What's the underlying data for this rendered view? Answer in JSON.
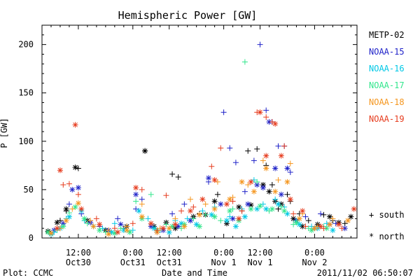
{
  "chart_data": {
    "type": "scatter",
    "title": "Hemispheric Power [GW]",
    "ylabel": "P [GW]",
    "xlabel": "Date and Time",
    "ylim": [
      0,
      220
    ],
    "yticks": [
      0,
      50,
      100,
      150,
      200
    ],
    "xlim_hours": [
      0,
      104
    ],
    "xticks": [
      {
        "h": 12,
        "time": "12:00",
        "date": "Oct30"
      },
      {
        "h": 30,
        "time": "0:00",
        "date": "Oct31"
      },
      {
        "h": 42,
        "time": "12:00",
        "date": "Oct31"
      },
      {
        "h": 60,
        "time": "0:00",
        "date": "Nov 1"
      },
      {
        "h": 72,
        "time": "12:00",
        "date": "Nov 1"
      },
      {
        "h": 90,
        "time": "0:00",
        "date": "Nov 2"
      }
    ],
    "legend": {
      "placement": "right",
      "series_entries": [
        "METP-02",
        "NOAA-15",
        "NOAA-16",
        "NOAA-17",
        "NOAA-18",
        "NOAA-19"
      ],
      "marker_entries": [
        {
          "symbol": "+",
          "label": "south"
        },
        {
          "symbol": "*",
          "label": "north"
        }
      ]
    },
    "series": [
      {
        "name": "METP-02",
        "color": "#000000",
        "south": [
          [
            6,
            18
          ],
          [
            8,
            28
          ],
          [
            12,
            72
          ],
          [
            27,
            10
          ],
          [
            34,
            90
          ],
          [
            43,
            66
          ],
          [
            45,
            63
          ],
          [
            52,
            25
          ],
          [
            58,
            45
          ],
          [
            66,
            28
          ],
          [
            68,
            90
          ],
          [
            71,
            92
          ],
          [
            74,
            75
          ],
          [
            76,
            55
          ],
          [
            78,
            30
          ],
          [
            81,
            45
          ],
          [
            82,
            38
          ],
          [
            85,
            25
          ],
          [
            88,
            18
          ],
          [
            93,
            24
          ],
          [
            96,
            18
          ],
          [
            100,
            15
          ]
        ],
        "north": [
          [
            2,
            7
          ],
          [
            5,
            16
          ],
          [
            8,
            30
          ],
          [
            11,
            73
          ],
          [
            15,
            18
          ],
          [
            21,
            8
          ],
          [
            28,
            12
          ],
          [
            34,
            90
          ],
          [
            37,
            12
          ],
          [
            41,
            16
          ],
          [
            44,
            10
          ],
          [
            50,
            22
          ],
          [
            54,
            24
          ],
          [
            57,
            38
          ],
          [
            61,
            15
          ],
          [
            65,
            32
          ],
          [
            69,
            34
          ],
          [
            73,
            55
          ],
          [
            75,
            48
          ],
          [
            77,
            38
          ],
          [
            79,
            35
          ],
          [
            83,
            20
          ],
          [
            86,
            12
          ],
          [
            91,
            14
          ],
          [
            95,
            22
          ],
          [
            98,
            16
          ],
          [
            102,
            22
          ]
        ]
      },
      {
        "name": "NOAA-15",
        "color": "#1f22c8",
        "south": [
          [
            3,
            5
          ],
          [
            9,
            35
          ],
          [
            13,
            25
          ],
          [
            19,
            12
          ],
          [
            25,
            20
          ],
          [
            31,
            30
          ],
          [
            33,
            40
          ],
          [
            38,
            6
          ],
          [
            43,
            25
          ],
          [
            47,
            35
          ],
          [
            55,
            58
          ],
          [
            60,
            130
          ],
          [
            62,
            93
          ],
          [
            64,
            78
          ],
          [
            67,
            48
          ],
          [
            70,
            80
          ],
          [
            72,
            200
          ],
          [
            74,
            132
          ],
          [
            76,
            120
          ],
          [
            78,
            95
          ],
          [
            80,
            95
          ],
          [
            82,
            68
          ],
          [
            87,
            22
          ],
          [
            92,
            25
          ],
          [
            97,
            15
          ]
        ],
        "north": [
          [
            4,
            8
          ],
          [
            7,
            15
          ],
          [
            10,
            50
          ],
          [
            12,
            52
          ],
          [
            16,
            16
          ],
          [
            22,
            8
          ],
          [
            26,
            14
          ],
          [
            31,
            45
          ],
          [
            36,
            12
          ],
          [
            40,
            8
          ],
          [
            45,
            12
          ],
          [
            49,
            18
          ],
          [
            55,
            62
          ],
          [
            59,
            35
          ],
          [
            63,
            20
          ],
          [
            68,
            35
          ],
          [
            71,
            55
          ],
          [
            73,
            52
          ],
          [
            75,
            120
          ],
          [
            77,
            72
          ],
          [
            79,
            45
          ],
          [
            81,
            72
          ],
          [
            84,
            18
          ],
          [
            90,
            10
          ],
          [
            95,
            14
          ],
          [
            100,
            10
          ]
        ]
      },
      {
        "name": "NOAA-16",
        "color": "#00c8e6",
        "south": [
          [
            4,
            6
          ],
          [
            8,
            20
          ],
          [
            14,
            18
          ],
          [
            20,
            10
          ],
          [
            24,
            15
          ],
          [
            30,
            8
          ],
          [
            35,
            20
          ],
          [
            39,
            8
          ],
          [
            44,
            18
          ],
          [
            48,
            20
          ],
          [
            53,
            28
          ],
          [
            57,
            32
          ],
          [
            62,
            22
          ],
          [
            66,
            30
          ],
          [
            70,
            60
          ],
          [
            73,
            35
          ],
          [
            77,
            40
          ],
          [
            80,
            32
          ],
          [
            84,
            18
          ],
          [
            89,
            12
          ],
          [
            94,
            15
          ]
        ],
        "north": [
          [
            3,
            4
          ],
          [
            6,
            10
          ],
          [
            9,
            22
          ],
          [
            13,
            28
          ],
          [
            17,
            12
          ],
          [
            23,
            6
          ],
          [
            27,
            8
          ],
          [
            32,
            28
          ],
          [
            37,
            10
          ],
          [
            42,
            6
          ],
          [
            46,
            15
          ],
          [
            51,
            14
          ],
          [
            56,
            24
          ],
          [
            61,
            18
          ],
          [
            64,
            12
          ],
          [
            67,
            22
          ],
          [
            71,
            30
          ],
          [
            74,
            30
          ],
          [
            78,
            35
          ],
          [
            81,
            25
          ],
          [
            85,
            14
          ],
          [
            91,
            10
          ],
          [
            96,
            8
          ]
        ]
      },
      {
        "name": "NOAA-17",
        "color": "#32e68c",
        "south": [
          [
            5,
            8
          ],
          [
            9,
            26
          ],
          [
            15,
            15
          ],
          [
            21,
            6
          ],
          [
            26,
            10
          ],
          [
            31,
            38
          ],
          [
            36,
            45
          ],
          [
            41,
            14
          ],
          [
            46,
            10
          ],
          [
            50,
            20
          ],
          [
            54,
            24
          ],
          [
            59,
            18
          ],
          [
            63,
            30
          ],
          [
            67,
            182
          ],
          [
            71,
            58
          ],
          [
            75,
            28
          ],
          [
            79,
            32
          ],
          [
            83,
            14
          ],
          [
            88,
            10
          ],
          [
            93,
            12
          ]
        ],
        "north": [
          [
            2,
            6
          ],
          [
            7,
            12
          ],
          [
            11,
            32
          ],
          [
            14,
            20
          ],
          [
            19,
            8
          ],
          [
            24,
            5
          ],
          [
            29,
            6
          ],
          [
            33,
            20
          ],
          [
            38,
            8
          ],
          [
            43,
            12
          ],
          [
            47,
            14
          ],
          [
            52,
            12
          ],
          [
            57,
            22
          ],
          [
            62,
            28
          ],
          [
            65,
            18
          ],
          [
            69,
            30
          ],
          [
            72,
            33
          ],
          [
            76,
            30
          ],
          [
            80,
            28
          ],
          [
            84,
            16
          ],
          [
            89,
            8
          ],
          [
            94,
            10
          ]
        ]
      },
      {
        "name": "NOAA-18",
        "color": "#f5961e",
        "south": [
          [
            6,
            10
          ],
          [
            10,
            30
          ],
          [
            16,
            18
          ],
          [
            22,
            8
          ],
          [
            28,
            12
          ],
          [
            33,
            35
          ],
          [
            39,
            10
          ],
          [
            44,
            20
          ],
          [
            49,
            40
          ],
          [
            54,
            35
          ],
          [
            58,
            58
          ],
          [
            63,
            42
          ],
          [
            68,
            55
          ],
          [
            73,
            80
          ],
          [
            78,
            60
          ],
          [
            82,
            77
          ],
          [
            86,
            25
          ],
          [
            91,
            12
          ],
          [
            96,
            20
          ]
        ],
        "north": [
          [
            3,
            5
          ],
          [
            8,
            18
          ],
          [
            12,
            36
          ],
          [
            17,
            12
          ],
          [
            22,
            4
          ],
          [
            28,
            8
          ],
          [
            33,
            22
          ],
          [
            38,
            6
          ],
          [
            42,
            10
          ],
          [
            47,
            12
          ],
          [
            52,
            24
          ],
          [
            57,
            30
          ],
          [
            62,
            40
          ],
          [
            66,
            58
          ],
          [
            70,
            48
          ],
          [
            74,
            72
          ],
          [
            77,
            48
          ],
          [
            81,
            58
          ],
          [
            85,
            20
          ],
          [
            90,
            10
          ],
          [
            95,
            14
          ],
          [
            101,
            18
          ]
        ]
      },
      {
        "name": "NOAA-19",
        "color": "#e63c1e",
        "south": [
          [
            7,
            55
          ],
          [
            9,
            56
          ],
          [
            12,
            45
          ],
          [
            18,
            20
          ],
          [
            24,
            10
          ],
          [
            30,
            15
          ],
          [
            33,
            50
          ],
          [
            38,
            8
          ],
          [
            41,
            44
          ],
          [
            46,
            28
          ],
          [
            50,
            32
          ],
          [
            56,
            74
          ],
          [
            59,
            93
          ],
          [
            63,
            38
          ],
          [
            66,
            28
          ],
          [
            71,
            130
          ],
          [
            74,
            125
          ],
          [
            76,
            120
          ],
          [
            80,
            95
          ],
          [
            83,
            25
          ],
          [
            87,
            12
          ],
          [
            93,
            10
          ],
          [
            99,
            10
          ]
        ],
        "north": [
          [
            5,
            10
          ],
          [
            6,
            70
          ],
          [
            11,
            117
          ],
          [
            13,
            30
          ],
          [
            19,
            14
          ],
          [
            25,
            6
          ],
          [
            31,
            52
          ],
          [
            36,
            15
          ],
          [
            40,
            10
          ],
          [
            44,
            14
          ],
          [
            49,
            28
          ],
          [
            53,
            40
          ],
          [
            57,
            60
          ],
          [
            61,
            35
          ],
          [
            65,
            20
          ],
          [
            69,
            58
          ],
          [
            72,
            130
          ],
          [
            74,
            85
          ],
          [
            77,
            118
          ],
          [
            79,
            85
          ],
          [
            82,
            40
          ],
          [
            86,
            28
          ],
          [
            92,
            12
          ],
          [
            98,
            14
          ],
          [
            103,
            30
          ]
        ]
      }
    ]
  },
  "footer": {
    "plot_credit": "Plot: CCMC",
    "timestamp": "2011/11/02 06:50:07"
  }
}
